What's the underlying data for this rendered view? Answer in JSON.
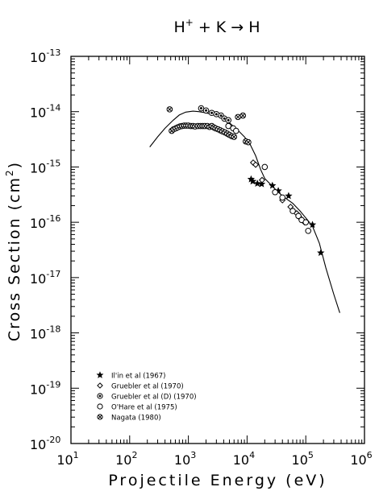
{
  "chart_data": {
    "type": "scatter",
    "title": "H+ + K → H",
    "title_parts": {
      "base": "H",
      "sup": "+",
      "rest": " + K → H"
    },
    "xlabel": "Projectile Energy (eV)",
    "ylabel": "Cross Section (cm2)",
    "ylabel_parts": {
      "base": "Cross Section (cm",
      "sup": "2",
      "end": ")"
    },
    "x_scale": "log",
    "y_scale": "log",
    "xlim": [
      10,
      1000000
    ],
    "ylim": [
      1e-20,
      1e-13
    ],
    "x_tick_labels": [
      {
        "v": 10,
        "base": "10",
        "exp": "1"
      },
      {
        "v": 100,
        "base": "10",
        "exp": "2"
      },
      {
        "v": 1000,
        "base": "10",
        "exp": "3"
      },
      {
        "v": 10000,
        "base": "10",
        "exp": "4"
      },
      {
        "v": 100000,
        "base": "10",
        "exp": "5"
      },
      {
        "v": 1000000,
        "base": "10",
        "exp": "6"
      }
    ],
    "y_tick_labels": [
      {
        "v": 1e-13,
        "base": "10",
        "exp": "-13"
      },
      {
        "v": 1e-14,
        "base": "10",
        "exp": "-14"
      },
      {
        "v": 1e-15,
        "base": "10",
        "exp": "-15"
      },
      {
        "v": 1e-16,
        "base": "10",
        "exp": "-16"
      },
      {
        "v": 1e-17,
        "base": "10",
        "exp": "-17"
      },
      {
        "v": 1e-18,
        "base": "10",
        "exp": "-18"
      },
      {
        "v": 1e-19,
        "base": "10",
        "exp": "-19"
      },
      {
        "v": 1e-20,
        "base": "10",
        "exp": "-20"
      }
    ],
    "grid": false,
    "legend_position": "bottom-left",
    "series": [
      {
        "name": "Il'in et al (1967)",
        "marker": "filled-star",
        "points": [
          [
            11700,
            6e-16
          ],
          [
            12500,
            5.5e-16
          ],
          [
            15000,
            5e-16
          ],
          [
            17700,
            4.9e-16
          ],
          [
            27000,
            4.6e-16
          ],
          [
            34000,
            3.7e-16
          ],
          [
            51000,
            3e-16
          ],
          [
            130000,
            9e-17
          ],
          [
            180000,
            2.8e-17
          ]
        ]
      },
      {
        "name": "Gruebler et al (1970)",
        "marker": "open-diamond",
        "points": [
          [
            12700,
            1.2e-15
          ],
          [
            14000,
            1.1e-15
          ],
          [
            18000,
            5.8e-16
          ],
          [
            40000,
            2.5e-16
          ],
          [
            55000,
            1.9e-16
          ],
          [
            70000,
            1.45e-16
          ],
          [
            80000,
            1.2e-16
          ],
          [
            95000,
            1e-16
          ]
        ]
      },
      {
        "name": "Gruebler et al (D) (1970)",
        "marker": "circle-with-dot",
        "points": [
          [
            1650,
            1.15e-14
          ],
          [
            2000,
            1.05e-14
          ],
          [
            2500,
            9.5e-15
          ],
          [
            3000,
            9e-15
          ],
          [
            3600,
            8.5e-15
          ],
          [
            4100,
            7.5e-15
          ],
          [
            4800,
            7e-15
          ]
        ]
      },
      {
        "name": "O'Hare et al (1975)",
        "marker": "open-circle",
        "points": [
          [
            4800,
            5.5e-15
          ],
          [
            5800,
            5e-15
          ],
          [
            6500,
            4.5e-15
          ],
          [
            20000,
            1e-15
          ],
          [
            30000,
            3.5e-16
          ],
          [
            40000,
            2.8e-16
          ],
          [
            60000,
            1.6e-16
          ],
          [
            75000,
            1.3e-16
          ],
          [
            85000,
            1.1e-16
          ],
          [
            100000,
            1e-16
          ],
          [
            110000,
            7e-17
          ]
        ]
      },
      {
        "name": "Nagata (1980)",
        "marker": "hatched-circle",
        "points": [
          [
            480,
            1.1e-14
          ],
          [
            520,
            4.5e-15
          ],
          [
            560,
            4.8e-15
          ],
          [
            610,
            5e-15
          ],
          [
            660,
            5.2e-15
          ],
          [
            720,
            5.4e-15
          ],
          [
            780,
            5.5e-15
          ],
          [
            850,
            5.6e-15
          ],
          [
            920,
            5.6e-15
          ],
          [
            1000,
            5.6e-15
          ],
          [
            1100,
            5.5e-15
          ],
          [
            1200,
            5.5e-15
          ],
          [
            1300,
            5.4e-15
          ],
          [
            1450,
            5.5e-15
          ],
          [
            1600,
            5.5e-15
          ],
          [
            1750,
            5.5e-15
          ],
          [
            1900,
            5.5e-15
          ],
          [
            2100,
            5.5e-15
          ],
          [
            2300,
            5.3e-15
          ],
          [
            2500,
            5.5e-15
          ],
          [
            2700,
            5.2e-15
          ],
          [
            2900,
            5e-15
          ],
          [
            3200,
            4.8e-15
          ],
          [
            3500,
            4.6e-15
          ],
          [
            3800,
            4.4e-15
          ],
          [
            4200,
            4.2e-15
          ],
          [
            4600,
            4e-15
          ],
          [
            5000,
            3.8e-15
          ],
          [
            5500,
            3.6e-15
          ],
          [
            6000,
            3.5e-15
          ],
          [
            7000,
            8e-15
          ],
          [
            8500,
            8.5e-15
          ],
          [
            9500,
            2.9e-15
          ],
          [
            10500,
            2.8e-15
          ]
        ]
      }
    ],
    "curve": {
      "points": [
        [
          220,
          2.3e-15
        ],
        [
          300,
          3.5e-15
        ],
        [
          400,
          5e-15
        ],
        [
          550,
          7e-15
        ],
        [
          700,
          8.7e-15
        ],
        [
          900,
          9.8e-15
        ],
        [
          1200,
          1.02e-14
        ],
        [
          1500,
          1e-14
        ],
        [
          2000,
          9.5e-15
        ],
        [
          3000,
          8.5e-15
        ],
        [
          4000,
          7.4e-15
        ],
        [
          5000,
          6.3e-15
        ],
        [
          7000,
          4.6e-15
        ],
        [
          9000,
          3.5e-15
        ],
        [
          11000,
          2.7e-15
        ],
        [
          14000,
          1.6e-15
        ],
        [
          17000,
          9e-16
        ],
        [
          20000,
          6.2e-16
        ],
        [
          30000,
          4e-16
        ],
        [
          40000,
          3e-16
        ],
        [
          60000,
          2.2e-16
        ],
        [
          80000,
          1.6e-16
        ],
        [
          100000,
          1.2e-16
        ],
        [
          130000,
          8.5e-17
        ],
        [
          170000,
          4.2e-17
        ],
        [
          220000,
          1.5e-17
        ],
        [
          300000,
          5e-18
        ],
        [
          380000,
          2.3e-18
        ]
      ]
    }
  }
}
